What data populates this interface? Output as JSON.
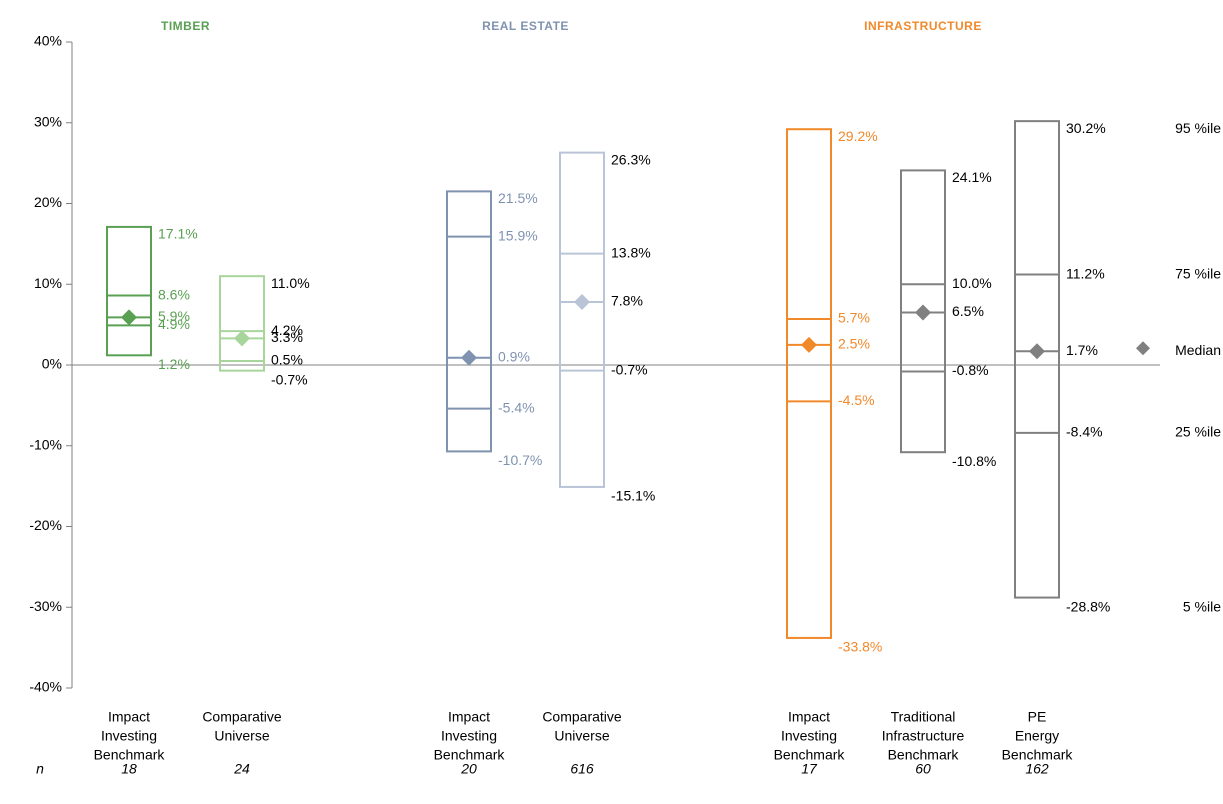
{
  "chart_data": {
    "type": "box",
    "ylim": [
      -40,
      40
    ],
    "yticks": [
      {
        "value": -40,
        "label": "-40%"
      },
      {
        "value": -30,
        "label": "-30%"
      },
      {
        "value": -20,
        "label": "-20%"
      },
      {
        "value": -10,
        "label": "-10%"
      },
      {
        "value": 0,
        "label": "0%"
      },
      {
        "value": 10,
        "label": "10%"
      },
      {
        "value": 20,
        "label": "20%"
      },
      {
        "value": 30,
        "label": "30%"
      },
      {
        "value": 40,
        "label": "40%"
      }
    ],
    "n_label": "n",
    "legend": [
      "5 %ile",
      "25 %ile",
      "Median",
      "75 %ile",
      "95 %ile"
    ],
    "legend_color": "#808080",
    "groups": [
      {
        "name": "TIMBER",
        "color": "#5aa052",
        "boxes": [
          {
            "label": [
              "Impact",
              "Investing",
              "Benchmark"
            ],
            "n": 18,
            "color": "#5aa052",
            "label_color": "#5aa052",
            "values": [
              1.2,
              4.9,
              5.9,
              8.6,
              17.1
            ],
            "value_labels": [
              "1.2%",
              "4.9%",
              "5.9%",
              "8.6%",
              "17.1%"
            ]
          },
          {
            "label": [
              "Comparative",
              "Universe"
            ],
            "n": 24,
            "color": "#a8d59c",
            "label_color": "#000000",
            "values": [
              -0.7,
              0.5,
              3.3,
              4.2,
              11.0
            ],
            "value_labels": [
              "-0.7%",
              "0.5%",
              "3.3%",
              "4.2%",
              "11.0%"
            ]
          }
        ]
      },
      {
        "name": "REAL ESTATE",
        "color": "#7f93b0",
        "boxes": [
          {
            "label": [
              "Impact",
              "Investing",
              "Benchmark"
            ],
            "n": 20,
            "color": "#7f93b0",
            "label_color": "#7f93b0",
            "values": [
              -10.7,
              -5.4,
              0.9,
              15.9,
              21.5
            ],
            "value_labels": [
              "-10.7%",
              "-5.4%",
              "0.9%",
              "15.9%",
              "21.5%"
            ]
          },
          {
            "label": [
              "Comparative",
              "Universe"
            ],
            "n": 616,
            "color": "#bac4d7",
            "label_color": "#000000",
            "values": [
              -15.1,
              -0.7,
              7.8,
              13.8,
              26.3
            ],
            "value_labels": [
              "-15.1%",
              "-0.7%",
              "7.8%",
              "13.8%",
              "26.3%"
            ]
          }
        ]
      },
      {
        "name": "INFRASTRUCTURE",
        "color": "#f0892a",
        "boxes": [
          {
            "label": [
              "Impact",
              "Investing",
              "Benchmark"
            ],
            "n": 17,
            "color": "#f0892a",
            "label_color": "#f0892a",
            "values": [
              -33.8,
              -4.5,
              2.5,
              5.7,
              29.2
            ],
            "value_labels": [
              "-33.8%",
              "-4.5%",
              "2.5%",
              "5.7%",
              "29.2%"
            ]
          },
          {
            "label": [
              "Traditional",
              "Infrastructure",
              "Benchmark"
            ],
            "n": 60,
            "color": "#808080",
            "label_color": "#000000",
            "values": [
              -10.8,
              -0.8,
              6.5,
              10.0,
              24.1
            ],
            "value_labels": [
              "-10.8%",
              "-0.8%",
              "6.5%",
              "10.0%",
              "24.1%"
            ]
          },
          {
            "label": [
              "PE",
              "Energy",
              "Benchmark"
            ],
            "n": 162,
            "color": "#808080",
            "label_color": "#000000",
            "values": [
              -28.8,
              -8.4,
              1.7,
              11.2,
              30.2
            ],
            "value_labels": [
              "-28.8%",
              "-8.4%",
              "1.7%",
              "11.2%",
              "30.2%"
            ]
          }
        ]
      }
    ]
  }
}
